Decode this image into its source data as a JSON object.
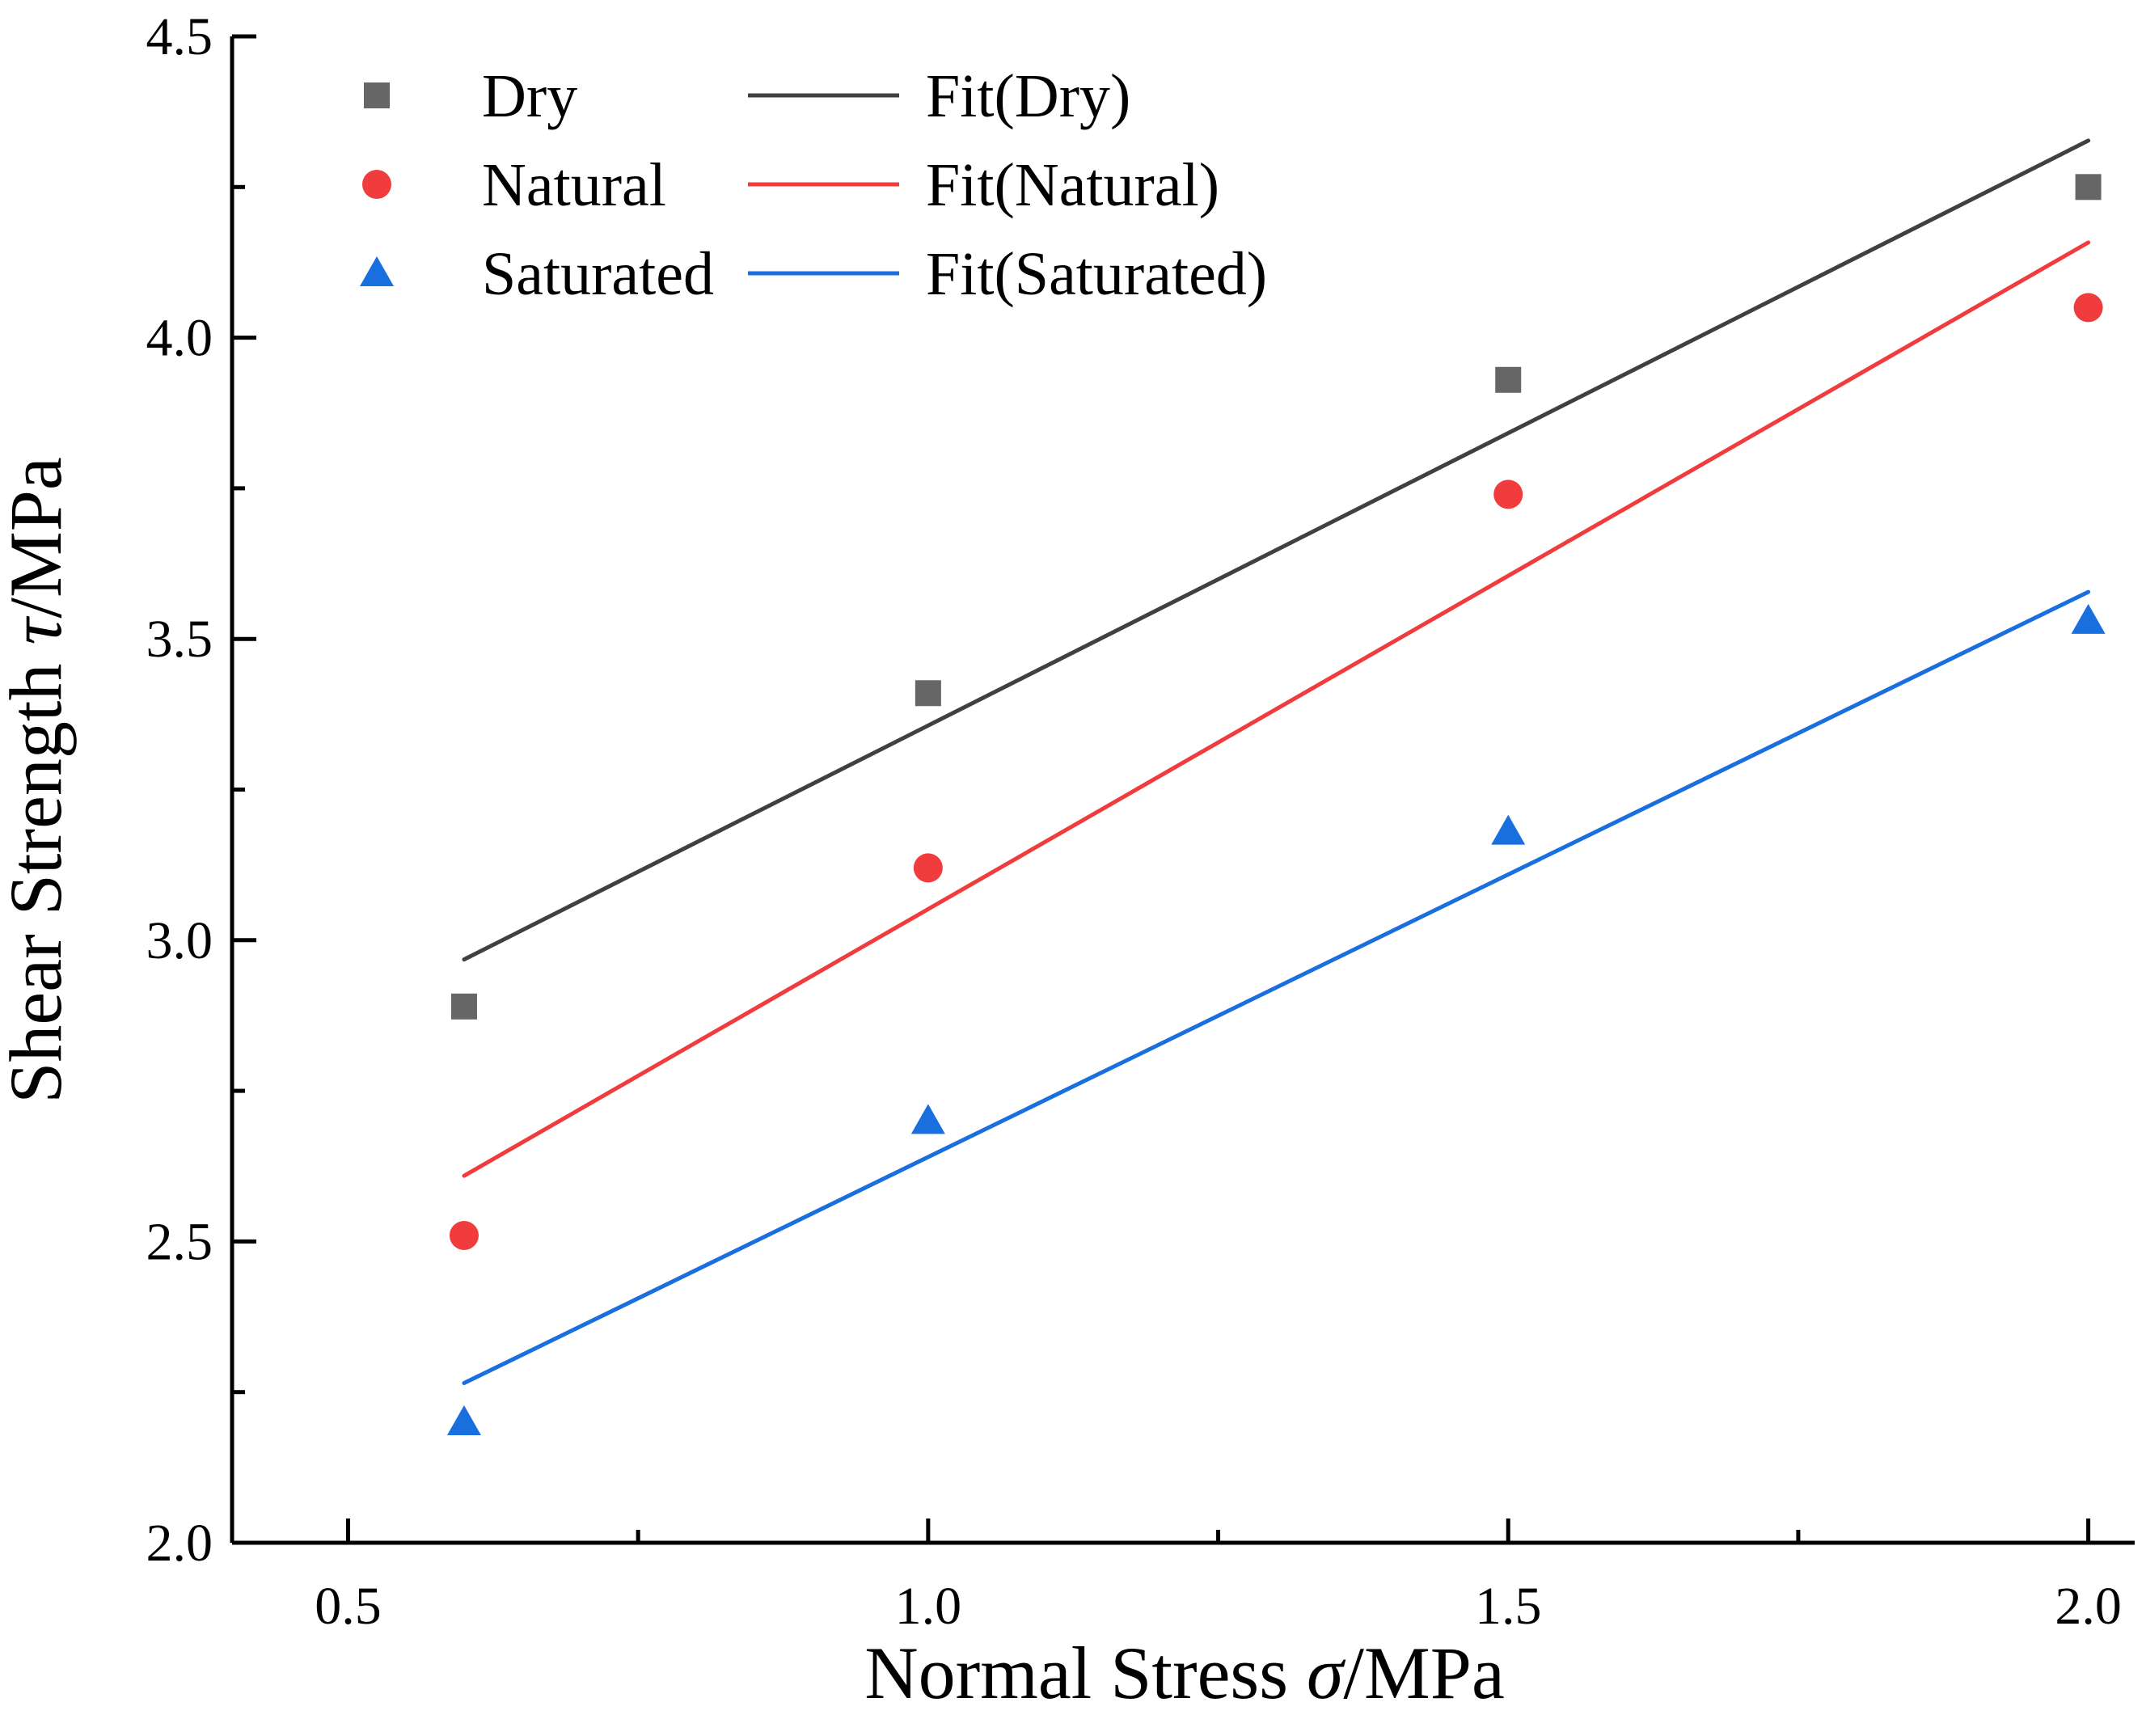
{
  "chart_data": {
    "type": "scatter",
    "title": "",
    "xlabel": "Normal Stress",
    "xlabel_symbol": "σ",
    "xlabel_unit": "/MPa",
    "ylabel": "Shear Strength",
    "ylabel_symbol": "τ",
    "ylabel_unit": "/MPa",
    "xlim": [
      0.4,
      2.04
    ],
    "ylim": [
      2.0,
      4.5
    ],
    "xticks": [
      0.5,
      1.0,
      1.5,
      2.0
    ],
    "xtick_labels": [
      "0.5",
      "1.0",
      "1.5",
      "2.0"
    ],
    "xminor_ticks": [
      0.75,
      1.25,
      1.75
    ],
    "yticks": [
      2.0,
      2.5,
      3.0,
      3.5,
      4.0,
      4.5
    ],
    "ytick_labels": [
      "2.0",
      "2.5",
      "3.0",
      "3.5",
      "4.0",
      "4.5"
    ],
    "yminor_ticks": [
      2.25,
      2.75,
      3.25,
      3.75,
      4.25
    ],
    "grid": false,
    "legend_position": "top-left",
    "series": [
      {
        "name": "Dry",
        "marker": "square",
        "color": "#666666",
        "x": [
          0.6,
          1.0,
          1.5,
          2.0
        ],
        "y": [
          2.89,
          3.41,
          3.93,
          4.25
        ]
      },
      {
        "name": "Natural",
        "marker": "circle",
        "color": "#f03c3c",
        "x": [
          0.6,
          1.0,
          1.5,
          2.0
        ],
        "y": [
          2.51,
          3.12,
          3.74,
          4.05
        ]
      },
      {
        "name": "Saturated",
        "marker": "triangle",
        "color": "#1a6fdf",
        "x": [
          0.6,
          1.0,
          1.5,
          2.0
        ],
        "y": [
          2.2,
          2.7,
          3.18,
          3.53
        ]
      }
    ],
    "fits": [
      {
        "name": "Fit(Dry)",
        "color": "#404040",
        "x": [
          0.6,
          2.0
        ],
        "y": [
          2.968,
          4.327
        ]
      },
      {
        "name": "Fit(Natural)",
        "color": "#f03c3c",
        "x": [
          0.6,
          2.0
        ],
        "y": [
          2.609,
          4.158
        ]
      },
      {
        "name": "Fit(Saturated)",
        "color": "#1a6fdf",
        "x": [
          0.6,
          2.0
        ],
        "y": [
          2.265,
          3.578
        ]
      }
    ]
  }
}
